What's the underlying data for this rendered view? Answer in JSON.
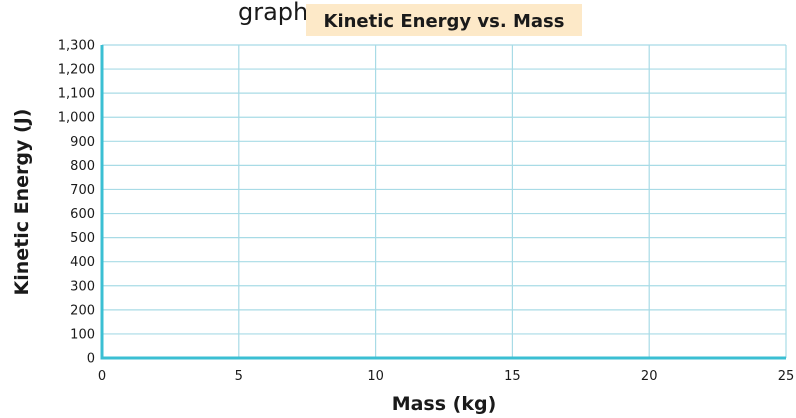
{
  "header_fragment": "graph",
  "chart_data": {
    "type": "line",
    "title": "Kinetic Energy vs. Mass",
    "xlabel": "Mass (kg)",
    "ylabel": "Kinetic Energy (J)",
    "xlim": [
      0,
      25
    ],
    "ylim": [
      0,
      1300
    ],
    "x_ticks": [
      0,
      5,
      10,
      15,
      20,
      25
    ],
    "x_tick_labels": [
      "0",
      "5",
      "10",
      "15",
      "20",
      "25"
    ],
    "y_ticks": [
      0,
      100,
      200,
      300,
      400,
      500,
      600,
      700,
      800,
      900,
      1000,
      1100,
      1200,
      1300
    ],
    "y_tick_labels": [
      "0",
      "100",
      "200",
      "300",
      "400",
      "500",
      "600",
      "700",
      "800",
      "900",
      "1,000",
      "1,100",
      "1,200",
      "1,300"
    ],
    "grid": true,
    "series": [],
    "colors": {
      "grid": "#a8dbe6",
      "axis": "#3bbfd3",
      "title_highlight": "#fde9c8"
    }
  }
}
